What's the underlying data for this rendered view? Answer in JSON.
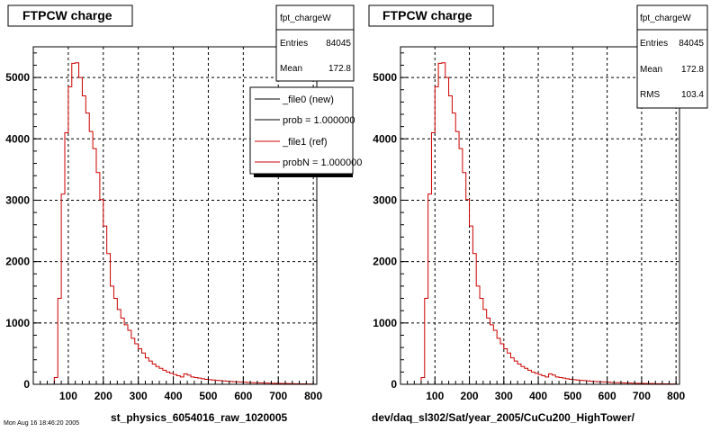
{
  "footer_text": "Mon Aug 16 18:46:20 2005",
  "chart_data": [
    {
      "type": "bar",
      "title": "FTPCW charge",
      "xlabel": "st_physics_6054016_raw_1020005",
      "ylabel": "",
      "xlim": [
        0,
        810
      ],
      "ylim": [
        0,
        5500
      ],
      "x_ticks": [
        "100",
        "200",
        "300",
        "400",
        "500",
        "600",
        "700",
        "800"
      ],
      "y_ticks": [
        "0",
        "1000",
        "2000",
        "3000",
        "4000",
        "5000"
      ],
      "grid": true,
      "stats": {
        "name": "fpt_chargeW",
        "rows": [
          {
            "label": "Entries",
            "value": "84045"
          },
          {
            "label": "Mean",
            "value": "172.8"
          }
        ]
      },
      "legend": {
        "placement": "top-right",
        "entries": [
          {
            "label": "_file0 (new)",
            "color": "#000000"
          },
          {
            "label": "prob = 1.000000",
            "color": "#000000"
          },
          {
            "label": "_file1 (ref)",
            "color": "#cc0000"
          },
          {
            "label": "probN = 1.000000",
            "color": "#cc0000"
          }
        ]
      },
      "bin_width": 10,
      "series": [
        {
          "name": "_file1 (ref)",
          "color": "#cc0000",
          "x": [
            60,
            70,
            80,
            90,
            100,
            110,
            120,
            130,
            140,
            150,
            160,
            170,
            180,
            190,
            200,
            210,
            220,
            230,
            240,
            250,
            260,
            270,
            280,
            290,
            300,
            310,
            320,
            330,
            340,
            350,
            360,
            370,
            380,
            390,
            400,
            410,
            420,
            430,
            440,
            450,
            460,
            470,
            480,
            490,
            500,
            510,
            520,
            530,
            540,
            550,
            560,
            570,
            580,
            590,
            600,
            610,
            620,
            630,
            640,
            650,
            660,
            670,
            680,
            690,
            700,
            710,
            720,
            730,
            740,
            750,
            760,
            770,
            780,
            790
          ],
          "values": [
            110,
            1400,
            3100,
            4100,
            4850,
            5230,
            5240,
            5000,
            4700,
            4420,
            4120,
            3840,
            3450,
            3010,
            2580,
            2130,
            1600,
            1400,
            1220,
            1080,
            970,
            880,
            750,
            660,
            580,
            510,
            430,
            380,
            330,
            290,
            260,
            230,
            200,
            180,
            160,
            140,
            120,
            170,
            150,
            120,
            110,
            100,
            90,
            80,
            75,
            70,
            65,
            60,
            55,
            50,
            45,
            42,
            40,
            38,
            35,
            30,
            28,
            26,
            24,
            22,
            20,
            18,
            16,
            15,
            14,
            13,
            12,
            11,
            10,
            9,
            8,
            7,
            6,
            5
          ]
        }
      ]
    },
    {
      "type": "bar",
      "title": "FTPCW charge",
      "xlabel": "dev/daq_sl302/Sat/year_2005/CuCu200_HighTower/",
      "ylabel": "",
      "xlim": [
        0,
        810
      ],
      "ylim": [
        0,
        5500
      ],
      "x_ticks": [
        "100",
        "200",
        "300",
        "400",
        "500",
        "600",
        "700",
        "800"
      ],
      "y_ticks": [
        "0",
        "1000",
        "2000",
        "3000",
        "4000",
        "5000"
      ],
      "grid": true,
      "stats": {
        "name": "fpt_chargeW",
        "rows": [
          {
            "label": "Entries",
            "value": "84045"
          },
          {
            "label": "Mean",
            "value": "172.8"
          },
          {
            "label": "RMS",
            "value": "103.4"
          }
        ]
      },
      "bin_width": 10,
      "series": [
        {
          "name": "",
          "color": "#cc0000",
          "x": [
            60,
            70,
            80,
            90,
            100,
            110,
            120,
            130,
            140,
            150,
            160,
            170,
            180,
            190,
            200,
            210,
            220,
            230,
            240,
            250,
            260,
            270,
            280,
            290,
            300,
            310,
            320,
            330,
            340,
            350,
            360,
            370,
            380,
            390,
            400,
            410,
            420,
            430,
            440,
            450,
            460,
            470,
            480,
            490,
            500,
            510,
            520,
            530,
            540,
            550,
            560,
            570,
            580,
            590,
            600,
            610,
            620,
            630,
            640,
            650,
            660,
            670,
            680,
            690,
            700,
            710,
            720,
            730,
            740,
            750,
            760,
            770,
            780,
            790
          ],
          "values": [
            110,
            1400,
            3100,
            4100,
            4850,
            5230,
            5240,
            5000,
            4700,
            4420,
            4120,
            3840,
            3450,
            3010,
            2580,
            2130,
            1600,
            1400,
            1220,
            1080,
            970,
            880,
            750,
            660,
            580,
            510,
            430,
            380,
            330,
            290,
            260,
            230,
            200,
            180,
            160,
            140,
            120,
            170,
            150,
            120,
            110,
            100,
            90,
            80,
            75,
            70,
            65,
            60,
            55,
            50,
            45,
            42,
            40,
            38,
            35,
            30,
            28,
            26,
            24,
            22,
            20,
            18,
            16,
            15,
            14,
            13,
            12,
            11,
            10,
            9,
            8,
            7,
            6,
            5
          ]
        }
      ]
    }
  ]
}
